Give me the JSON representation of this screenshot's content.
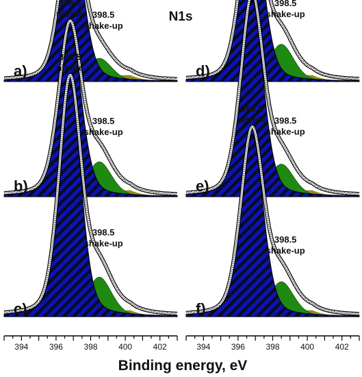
{
  "title": "N1s",
  "x_axis_label": "Binding energy, eV",
  "colors": {
    "nitride_fill": "#0a14b4",
    "nitride_hatch": "#0b0b22",
    "shakeup_fill": "#1f8a12",
    "background_fill": "#8f8a1e",
    "envelope": "#000000"
  },
  "chart_data": [
    {
      "type": "area",
      "panel": "a)",
      "xlim": [
        393,
        403
      ],
      "ticks": [
        394,
        396,
        398,
        400,
        402
      ],
      "peaks": [
        {
          "energy": "396.9",
          "label": "nitride",
          "center": 396.9,
          "height": 0.68,
          "fwhm": 1.55
        },
        {
          "energy": "398.5",
          "label": "shake-up",
          "center": 398.5,
          "height": 0.1,
          "fwhm": 1.7
        }
      ]
    },
    {
      "type": "area",
      "panel": "b)",
      "xlim": [
        393,
        403
      ],
      "ticks": [
        394,
        396,
        398,
        400,
        402
      ],
      "peaks": [
        {
          "energy": "396.8",
          "label": "nitride",
          "center": 396.8,
          "height": 0.72,
          "fwhm": 1.55
        },
        {
          "energy": "398.5",
          "label": "shake-up",
          "center": 398.5,
          "height": 0.15,
          "fwhm": 1.7
        }
      ]
    },
    {
      "type": "area",
      "panel": "c)",
      "xlim": [
        393,
        403
      ],
      "ticks": [
        394,
        396,
        398,
        400,
        402
      ],
      "peaks": [
        {
          "energy": "396.8",
          "label": "nitride",
          "center": 396.8,
          "height": 1.0,
          "fwhm": 1.5
        },
        {
          "energy": "398.5",
          "label": "shake-up",
          "center": 398.5,
          "height": 0.17,
          "fwhm": 1.7
        }
      ]
    },
    {
      "type": "area",
      "panel": "d)",
      "xlim": [
        393,
        403
      ],
      "ticks": [
        394,
        396,
        398,
        400,
        402
      ],
      "peaks": [
        {
          "energy": "396.8",
          "label": "nitride",
          "center": 396.8,
          "height": 0.74,
          "fwhm": 1.55
        },
        {
          "energy": "398.5",
          "label": "shake-up",
          "center": 398.5,
          "height": 0.16,
          "fwhm": 1.7
        }
      ]
    },
    {
      "type": "area",
      "panel": "e)",
      "xlim": [
        393,
        403
      ],
      "ticks": [
        394,
        396,
        398,
        400,
        402
      ],
      "peaks": [
        {
          "energy": "396.8",
          "label": "nitride",
          "center": 396.8,
          "height": 0.84,
          "fwhm": 1.55
        },
        {
          "energy": "398.5",
          "label": "shake-up",
          "center": 398.5,
          "height": 0.14,
          "fwhm": 1.7
        }
      ]
    },
    {
      "type": "area",
      "panel": "f)",
      "xlim": [
        393,
        403
      ],
      "ticks": [
        394,
        396,
        398,
        400,
        402
      ],
      "peaks": [
        {
          "energy": "396.8",
          "label": "nitride",
          "center": 396.8,
          "height": 0.78,
          "fwhm": 1.55
        },
        {
          "energy": "398.5",
          "label": "shake-up",
          "center": 398.5,
          "height": 0.15,
          "fwhm": 1.7
        }
      ]
    }
  ]
}
